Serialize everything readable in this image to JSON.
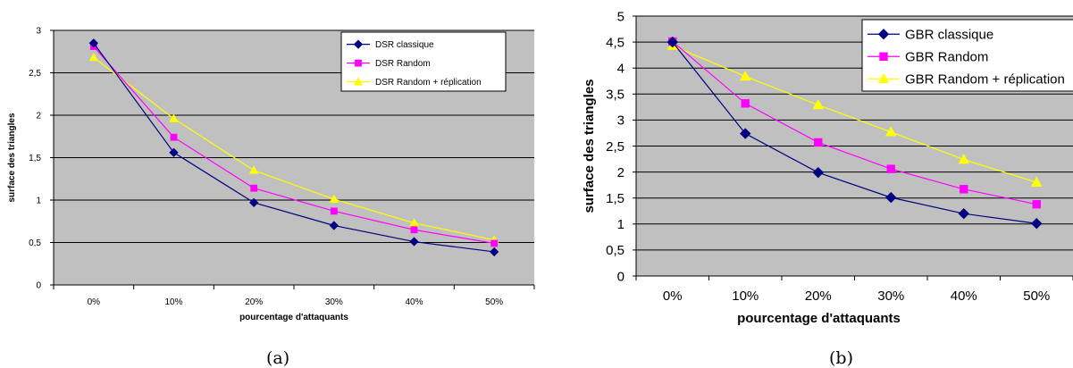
{
  "chart_data": [
    {
      "panel": "(a)",
      "type": "line",
      "title": "",
      "xlabel": "pourcentage d'attaquants",
      "ylabel": "surface des triangles",
      "categories": [
        "0%",
        "10%",
        "20%",
        "30%",
        "40%",
        "50%"
      ],
      "ylim": [
        0,
        3
      ],
      "yticks": [
        "0",
        "0,5",
        "1",
        "1,5",
        "2",
        "2,5",
        "3"
      ],
      "grid": true,
      "legend_position": "top-right",
      "series": [
        {
          "name": "DSR classique",
          "color": "#000080",
          "marker": "diamond",
          "values": [
            2.85,
            1.56,
            0.97,
            0.7,
            0.51,
            0.39
          ]
        },
        {
          "name": "DSR Random",
          "color": "#ff00ff",
          "marker": "square",
          "values": [
            2.81,
            1.74,
            1.14,
            0.87,
            0.65,
            0.49
          ]
        },
        {
          "name": "DSR Random + réplication",
          "color": "#ffff00",
          "marker": "triangle",
          "values": [
            2.68,
            1.96,
            1.35,
            1.01,
            0.73,
            0.53
          ]
        }
      ]
    },
    {
      "panel": "(b)",
      "type": "line",
      "title": "",
      "xlabel": "pourcentage d'attaquants",
      "ylabel": "surface des triangles",
      "categories": [
        "0%",
        "10%",
        "20%",
        "30%",
        "40%",
        "50%"
      ],
      "ylim": [
        0,
        5
      ],
      "yticks": [
        "0",
        "0,5",
        "1",
        "1,5",
        "2",
        "2,5",
        "3",
        "3,5",
        "4",
        "4,5",
        "5"
      ],
      "grid": true,
      "legend_position": "top-right",
      "series": [
        {
          "name": "GBR classique",
          "color": "#000080",
          "marker": "diamond",
          "values": [
            4.5,
            2.74,
            1.99,
            1.51,
            1.2,
            1.01
          ]
        },
        {
          "name": "GBR Random",
          "color": "#ff00ff",
          "marker": "square",
          "values": [
            4.51,
            3.32,
            2.57,
            2.06,
            1.67,
            1.38
          ]
        },
        {
          "name": "GBR Random + réplication",
          "color": "#ffff00",
          "marker": "triangle",
          "values": [
            4.43,
            3.84,
            3.29,
            2.77,
            2.24,
            1.8
          ]
        }
      ]
    }
  ],
  "captions": [
    "(a)",
    "(b)"
  ]
}
